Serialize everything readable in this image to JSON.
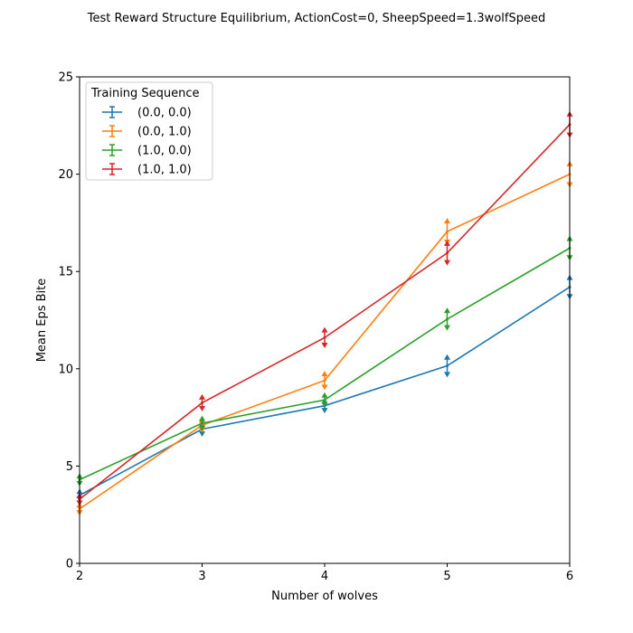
{
  "chart_data": {
    "type": "line",
    "title": "Test Reward Structure Equilibrium, ActionCost=0, SheepSpeed=1.3wolfSpeed",
    "xlabel": "Number of wolves",
    "ylabel": "Mean Eps Bite",
    "x": [
      2,
      3,
      4,
      5,
      6
    ],
    "xlim": [
      2,
      6
    ],
    "ylim": [
      0,
      25
    ],
    "xticks": [
      "2",
      "3",
      "4",
      "5",
      "6"
    ],
    "yticks": [
      "0",
      "5",
      "10",
      "15",
      "20",
      "25"
    ],
    "grid": false,
    "legend": {
      "title": "Training Sequence",
      "placement": "top-left"
    },
    "series": [
      {
        "name": "(0.0, 0.0)",
        "color": "#1f77b4",
        "values": [
          3.5,
          6.9,
          8.1,
          10.15,
          14.2
        ],
        "errors": [
          0.25,
          0.3,
          0.3,
          0.5,
          0.55
        ]
      },
      {
        "name": "(0.0, 1.0)",
        "color": "#ff7f0e",
        "values": [
          2.8,
          7.1,
          9.4,
          17.05,
          20.0
        ],
        "errors": [
          0.25,
          0.3,
          0.4,
          0.6,
          0.6
        ]
      },
      {
        "name": "(1.0, 0.0)",
        "color": "#2ca02c",
        "values": [
          4.3,
          7.2,
          8.4,
          12.55,
          16.2
        ],
        "errors": [
          0.25,
          0.3,
          0.3,
          0.5,
          0.55
        ]
      },
      {
        "name": "(1.0, 1.0)",
        "color": "#d62728",
        "values": [
          3.3,
          8.25,
          11.6,
          15.95,
          22.55
        ],
        "errors": [
          0.25,
          0.35,
          0.45,
          0.55,
          0.6
        ]
      }
    ]
  }
}
